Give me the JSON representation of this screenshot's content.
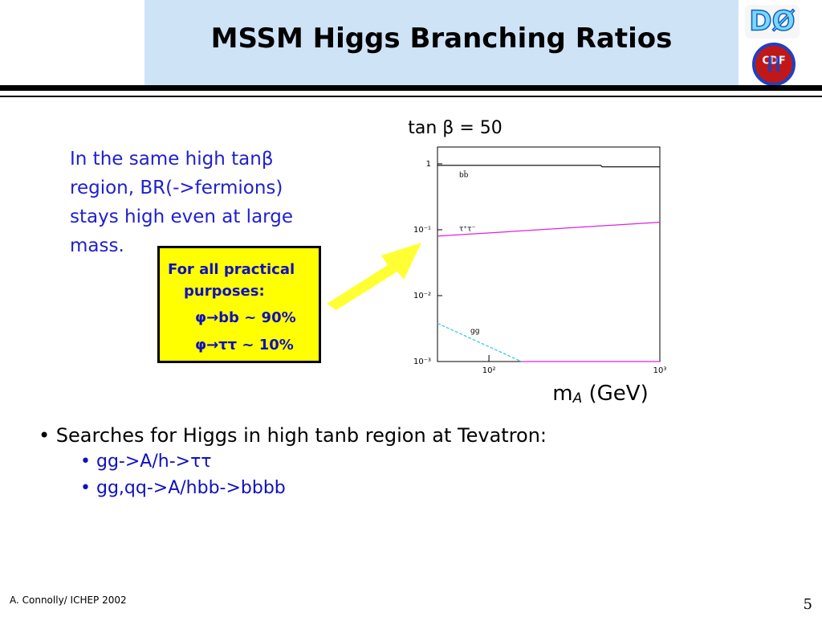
{
  "header": {
    "title": "MSSM Higgs Branching Ratios",
    "logos": [
      "DØ",
      "CDF",
      "II"
    ]
  },
  "paragraph": [
    "In the same high tanβ",
    "region, BR(->fermions)",
    "stays high even at large",
    "mass."
  ],
  "box": {
    "lines": [
      "For all practical",
      "purposes:",
      "φ→bb ~ 90%",
      "φ→ττ ~ 10%"
    ]
  },
  "plot": {
    "type": "line",
    "title": "tan β = 50",
    "x_label": {
      "main": "m",
      "sub": "A",
      "rest": " (GeV)"
    },
    "log_x": true,
    "log_y": true,
    "xlim": [
      50,
      1000
    ],
    "ylim": [
      0.001,
      1.8
    ],
    "xticks": [
      {
        "value": 100,
        "label": "10²"
      },
      {
        "value": 1000,
        "label": "10³"
      }
    ],
    "yticks": [
      {
        "value": 1,
        "label": "1"
      },
      {
        "value": 0.1,
        "label": "10⁻¹"
      },
      {
        "value": 0.01,
        "label": "10⁻²"
      },
      {
        "value": 0.001,
        "label": "10⁻³"
      }
    ],
    "series": [
      {
        "name": "bb̄",
        "color": "#000000",
        "x": [
          50,
          450,
          460,
          1000
        ],
        "values": [
          0.95,
          0.95,
          0.9,
          0.9
        ]
      },
      {
        "name": "τ⁺τ⁻",
        "color": "#e020e0",
        "x": [
          50,
          1000
        ],
        "values": [
          0.08,
          0.13
        ]
      },
      {
        "name": "gg",
        "color": "#30c8e0",
        "dashed": true,
        "x": [
          50,
          155
        ],
        "values": [
          0.0038,
          0.001
        ]
      },
      {
        "color": "#e020e0",
        "x": [
          155,
          1000
        ],
        "values": [
          0.001,
          0.001
        ]
      }
    ]
  },
  "bullets": {
    "main": "Searches for Higgs in high tanb region at Tevatron:",
    "sub": [
      "gg->A/h->ττ",
      "gg,qq->A/hbb->bbbb"
    ]
  },
  "footer": {
    "author": "A. Connolly/ ICHEP 2002",
    "page": "5"
  }
}
